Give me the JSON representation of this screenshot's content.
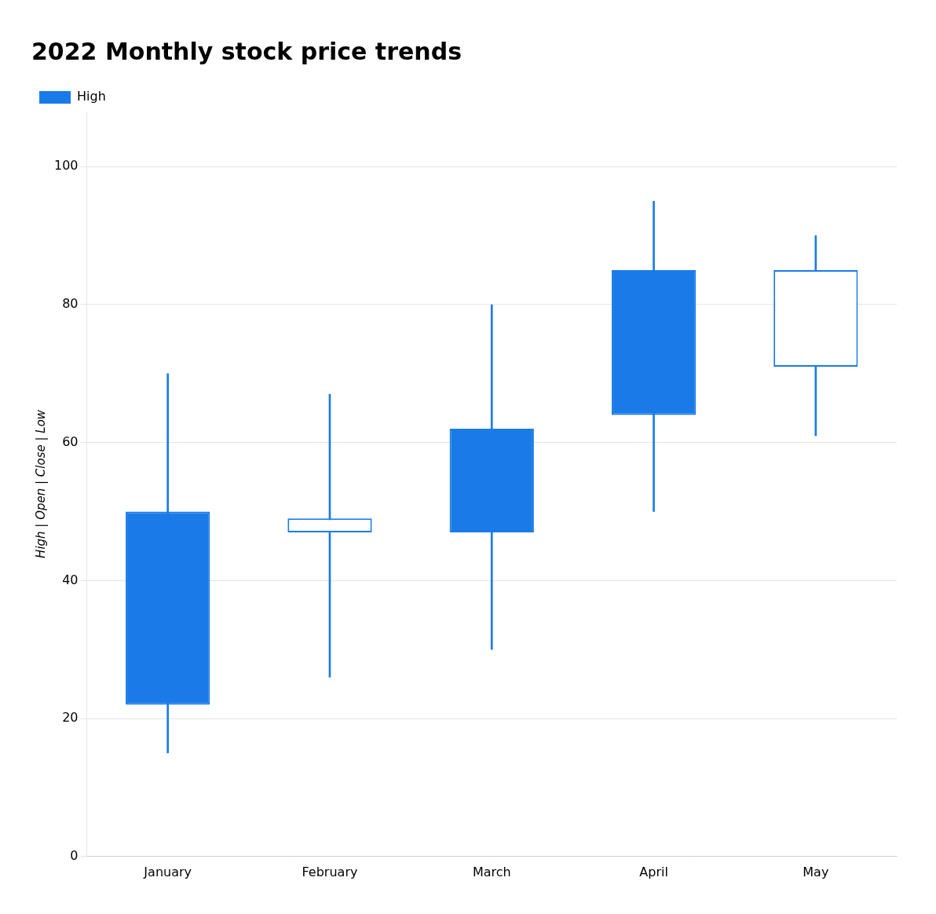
{
  "chart_data": {
    "type": "candlestick",
    "title": "2022 Monthly stock price trends",
    "y_label": "High | Open | Close | Low",
    "categories": [
      "January",
      "February",
      "March",
      "April",
      "May"
    ],
    "series": [
      {
        "name": "High",
        "color": "#1a7be8",
        "colors": [
          "#1a7be8",
          "#ffffff",
          "#1a7be8",
          "#1a7be8",
          "#ffffff"
        ],
        "open": [
          50,
          47,
          62,
          85,
          85
        ],
        "close": [
          22,
          49,
          47,
          64,
          71
        ],
        "high": [
          70,
          67,
          80,
          95,
          90
        ],
        "low": [
          15,
          26,
          30,
          50,
          61
        ]
      }
    ],
    "ylim": [
      0,
      108
    ],
    "yticks": [
      0,
      20,
      40,
      60,
      80,
      100
    ],
    "grid": "y",
    "legend": "upper left"
  }
}
